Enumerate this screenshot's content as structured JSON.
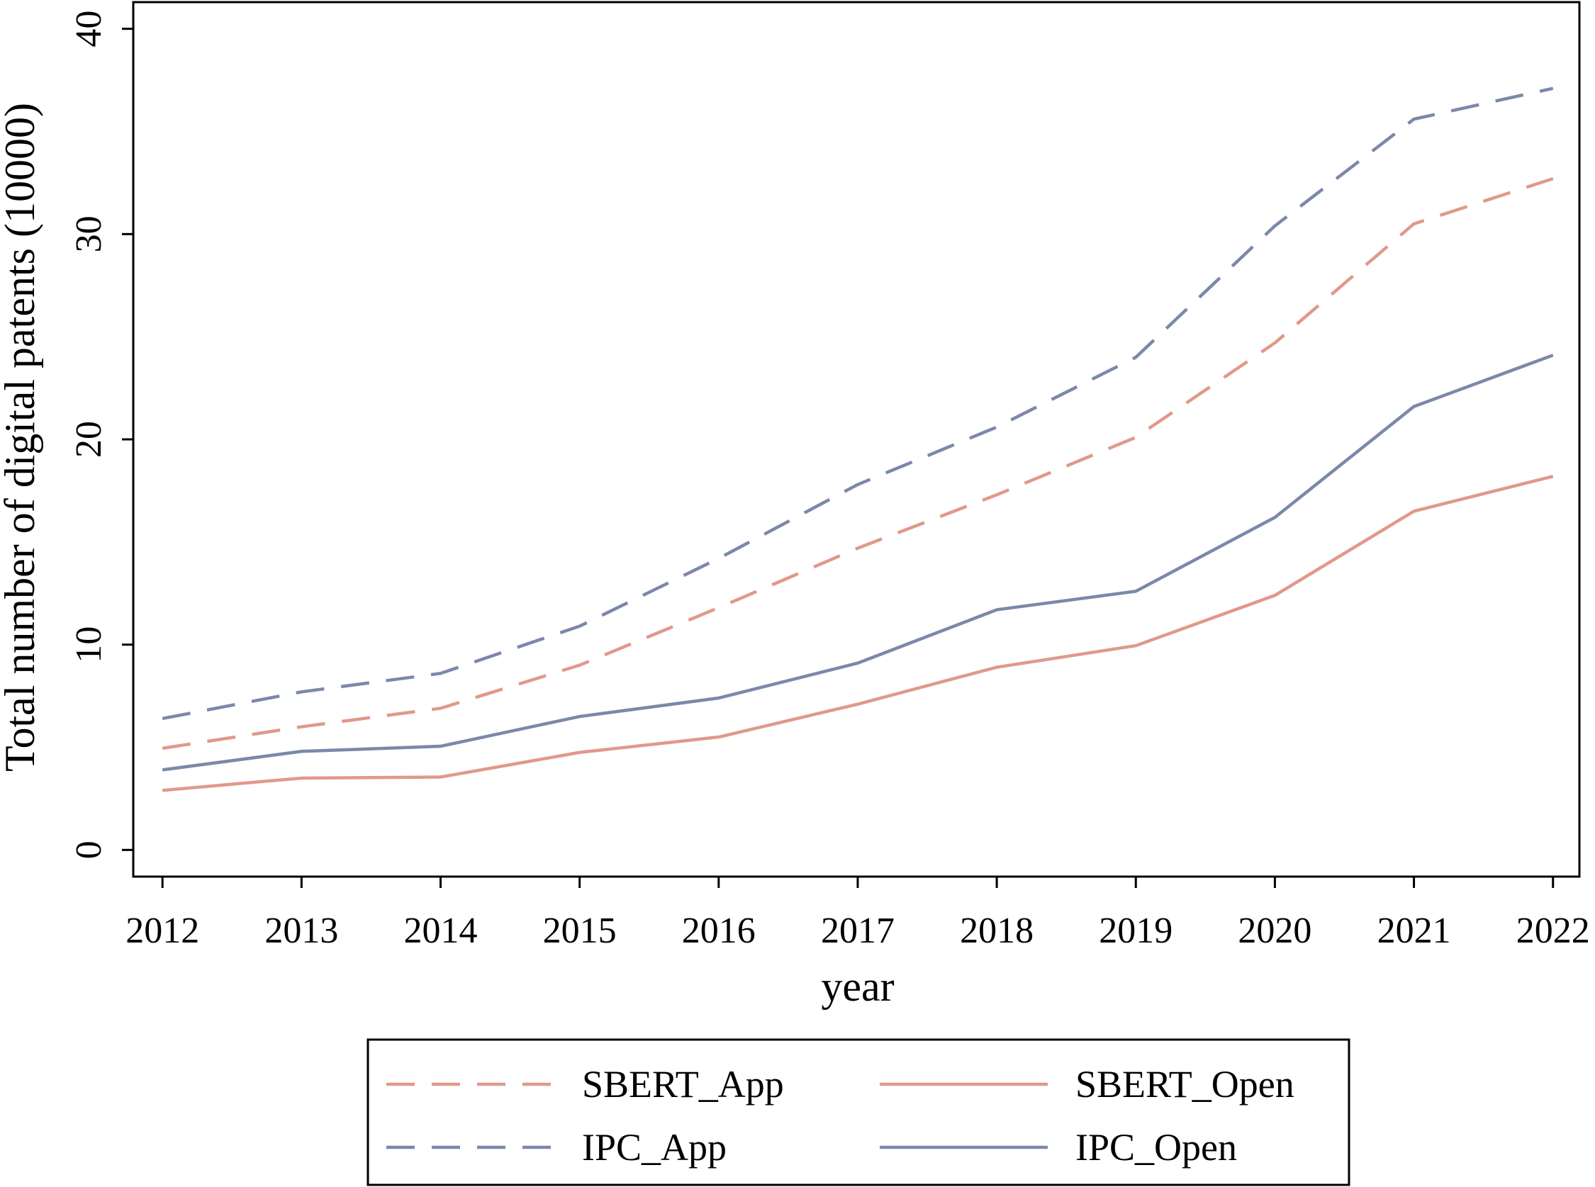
{
  "chart_data": {
    "type": "line",
    "x_label": "year",
    "y_label": "Total number of digital patents (10000)",
    "x": [
      2012,
      2013,
      2014,
      2015,
      2016,
      2017,
      2018,
      2019,
      2020,
      2021,
      2022
    ],
    "series": [
      {
        "name": "SBERT_App",
        "color": "#e0998a",
        "linestyle": "dashed",
        "values": [
          4.95,
          6.0,
          6.9,
          9.0,
          11.8,
          14.7,
          17.3,
          20.1,
          24.7,
          30.5,
          32.7
        ]
      },
      {
        "name": "SBERT_Open",
        "color": "#e0998a",
        "linestyle": "solid",
        "values": [
          2.9,
          3.5,
          3.55,
          4.75,
          5.5,
          7.1,
          8.9,
          9.95,
          12.4,
          16.5,
          18.2
        ]
      },
      {
        "name": "IPC_App",
        "color": "#7b88aa",
        "linestyle": "dashed",
        "values": [
          6.4,
          7.7,
          8.6,
          10.9,
          14.2,
          17.8,
          20.6,
          24.0,
          30.4,
          35.6,
          37.1
        ]
      },
      {
        "name": "IPC_Open",
        "color": "#7b88aa",
        "linestyle": "solid",
        "values": [
          3.9,
          4.8,
          5.05,
          6.5,
          7.4,
          9.1,
          11.7,
          12.6,
          16.2,
          21.6,
          24.1
        ]
      }
    ],
    "xlim": [
      2011.79,
      2022.19
    ],
    "xticks": [
      2012,
      2013,
      2014,
      2015,
      2016,
      2017,
      2018,
      2019,
      2020,
      2021,
      2022
    ],
    "ylim": [
      -1.3,
      41.3
    ],
    "yticks": [
      0,
      10,
      20,
      30,
      40
    ],
    "grid": false,
    "legend": "bottom"
  }
}
